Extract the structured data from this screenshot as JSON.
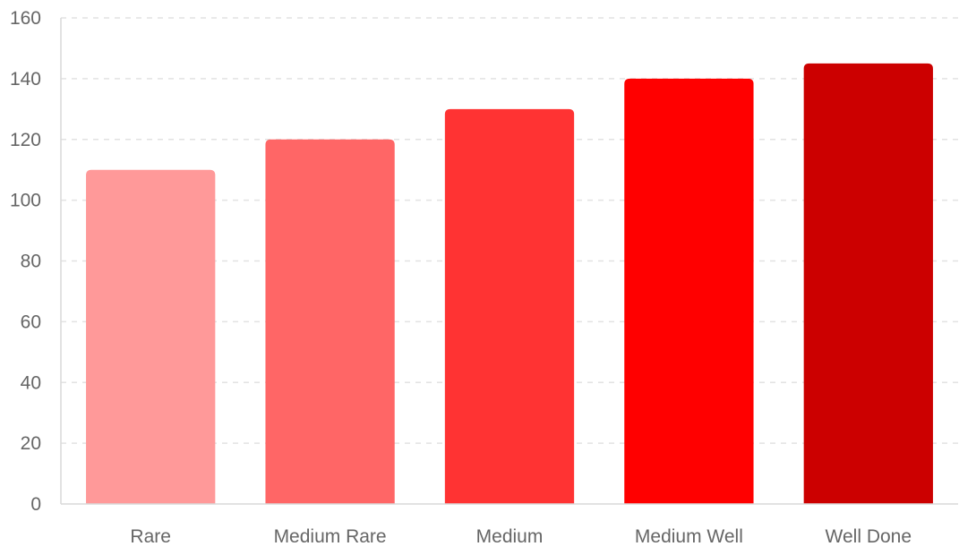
{
  "chart_data": {
    "type": "bar",
    "title": "",
    "xlabel": "",
    "ylabel": "",
    "categories": [
      "Rare",
      "Medium Rare",
      "Medium",
      "Medium Well",
      "Well Done"
    ],
    "values": [
      110,
      120,
      130,
      140,
      145
    ],
    "bar_colors": [
      "#ff9999",
      "#ff6666",
      "#ff3333",
      "#ff0000",
      "#cc0000"
    ],
    "ylim": [
      0,
      160
    ],
    "yticks": [
      0,
      20,
      40,
      60,
      80,
      100,
      120,
      140,
      160
    ],
    "grid": true,
    "legend": "none"
  }
}
